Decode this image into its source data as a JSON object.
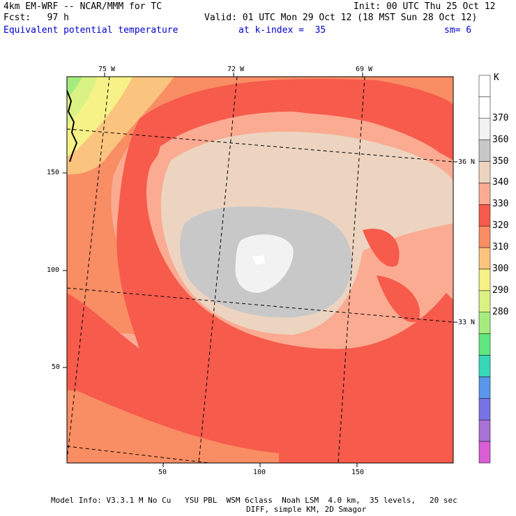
{
  "header": {
    "line1_left": "4km EM-WRF -- NCAR/MMM for TC",
    "line1_right": "Init: 00 UTC Thu 25 Oct 12",
    "line2_left": "Fcst:   97 h",
    "line2_right": "Valid: 01 UTC Mon 29 Oct 12 (18 MST Sun 28 Oct 12)",
    "field": "Equivalent potential temperature",
    "level": "at k-index =  35",
    "smoothing": "sm= 6"
  },
  "map": {
    "lon_labels": [
      "75 W",
      "72 W",
      "69 W"
    ],
    "lat_labels": [
      "36 N",
      "33 N"
    ],
    "x_ticks": [
      "50",
      "100",
      "150"
    ],
    "y_ticks": [
      "150",
      "100",
      "50"
    ]
  },
  "colorbar": {
    "unit": "K",
    "levels": [
      {
        "label": "",
        "color": "#ffffff"
      },
      {
        "label": "370",
        "color": "#ffffff"
      },
      {
        "label": "360",
        "color": "#f2f2f2"
      },
      {
        "label": "350",
        "color": "#c8c8c8"
      },
      {
        "label": "340",
        "color": "#ecd4c0"
      },
      {
        "label": "330",
        "color": "#fbab92"
      },
      {
        "label": "320",
        "color": "#f65b4c"
      },
      {
        "label": "310",
        "color": "#f98d64"
      },
      {
        "label": "300",
        "color": "#fbc47e"
      },
      {
        "label": "290",
        "color": "#f6f287"
      },
      {
        "label": "280",
        "color": "#d9f283"
      },
      {
        "label": "",
        "color": "#a5ec7f"
      },
      {
        "label": "",
        "color": "#5fe87e"
      },
      {
        "label": "",
        "color": "#36d8b8"
      },
      {
        "label": "",
        "color": "#5a96ea"
      },
      {
        "label": "",
        "color": "#7a73e6"
      },
      {
        "label": "",
        "color": "#a872d6"
      },
      {
        "label": "",
        "color": "#d95ed6"
      }
    ]
  },
  "footer": {
    "line1": "Model Info: V3.3.1 M No Cu   YSU PBL  WSM 6class  Noah LSM  4.0 km,  35 levels,   20 sec",
    "line2": "DIFF, simple KM, 2D Smagor"
  }
}
